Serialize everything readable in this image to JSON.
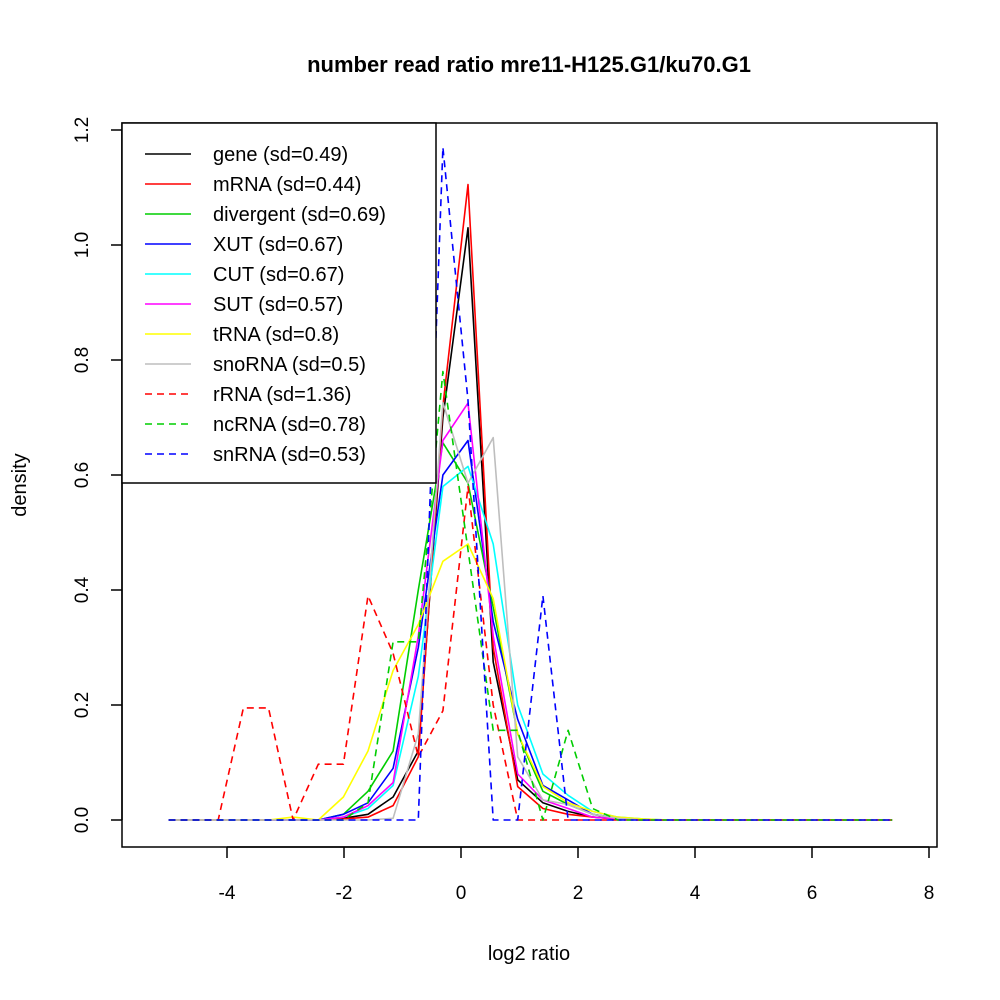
{
  "chart_data": {
    "type": "line",
    "title": "number read ratio mre11-H125.G1/ku70.G1",
    "xlabel": "log2 ratio",
    "ylabel": "density",
    "xlim": [
      -5.3,
      8.05
    ],
    "ylim": [
      -0.05,
      1.21
    ],
    "xticks": [
      -4,
      -2,
      0,
      2,
      4,
      6,
      8
    ],
    "xtick_labels": [
      "-4",
      "-2",
      "0",
      "2",
      "4",
      "6",
      "8"
    ],
    "yticks": [
      0,
      0.2,
      0.4,
      0.6,
      0.8,
      1.0,
      1.2
    ],
    "ytick_labels": [
      "0.0",
      "0.2",
      "0.4",
      "0.6",
      "0.8",
      "1.0",
      "1.2"
    ],
    "grid": false,
    "legend_position": "top-left",
    "x": [
      -5.0,
      -4.57,
      -4.15,
      -3.72,
      -3.29,
      -2.87,
      -2.44,
      -2.01,
      -1.59,
      -1.16,
      -0.73,
      -0.31,
      0.12,
      0.55,
      0.97,
      1.4,
      1.83,
      2.25,
      2.68,
      3.11,
      3.53,
      3.96,
      4.39,
      4.81,
      5.24,
      5.67,
      6.09,
      6.52,
      6.95,
      7.37
    ],
    "series": [
      {
        "name": "gene (sd=0.49)",
        "color": "#000000",
        "dashed": false,
        "values": [
          0,
          0,
          0,
          0,
          0,
          0,
          0,
          0.003,
          0.01,
          0.04,
          0.12,
          0.7,
          1.03,
          0.275,
          0.07,
          0.03,
          0.015,
          0.005,
          0.002,
          0,
          0,
          0,
          0,
          0,
          0,
          0,
          0,
          0,
          0,
          0
        ]
      },
      {
        "name": "mRNA (sd=0.44)",
        "color": "#ff0000",
        "dashed": false,
        "values": [
          0,
          0,
          0,
          0,
          0,
          0,
          0,
          0.002,
          0.005,
          0.025,
          0.11,
          0.72,
          1.105,
          0.3,
          0.058,
          0.02,
          0.01,
          0.005,
          0.002,
          0,
          0,
          0,
          0,
          0,
          0,
          0,
          0,
          0,
          0,
          0
        ]
      },
      {
        "name": "divergent (sd=0.69)",
        "color": "#00cd00",
        "dashed": false,
        "values": [
          0,
          0,
          0,
          0,
          0,
          0,
          0,
          0.01,
          0.05,
          0.12,
          0.4,
          0.656,
          0.586,
          0.37,
          0.15,
          0.05,
          0.027,
          0.01,
          0.003,
          0,
          0,
          0,
          0,
          0,
          0,
          0,
          0,
          0,
          0,
          0
        ]
      },
      {
        "name": "XUT (sd=0.67)",
        "color": "#0000ff",
        "dashed": false,
        "values": [
          0,
          0,
          0,
          0,
          0,
          0,
          0,
          0.01,
          0.03,
          0.09,
          0.3,
          0.6,
          0.66,
          0.345,
          0.175,
          0.06,
          0.035,
          0.01,
          0.003,
          0,
          0,
          0,
          0,
          0,
          0,
          0,
          0,
          0,
          0,
          0
        ]
      },
      {
        "name": "CUT (sd=0.67)",
        "color": "#00ffff",
        "dashed": false,
        "values": [
          0,
          0,
          0,
          0,
          0,
          0,
          0,
          0.005,
          0.02,
          0.06,
          0.25,
          0.58,
          0.615,
          0.48,
          0.2,
          0.08,
          0.043,
          0.015,
          0.005,
          0.002,
          0,
          0,
          0,
          0,
          0,
          0,
          0,
          0,
          0,
          0
        ]
      },
      {
        "name": "SUT (sd=0.57)",
        "color": "#ff00ff",
        "dashed": false,
        "values": [
          0,
          0,
          0,
          0,
          0,
          0,
          0,
          0.005,
          0.025,
          0.065,
          0.32,
          0.66,
          0.725,
          0.32,
          0.08,
          0.035,
          0.02,
          0.005,
          0.002,
          0,
          0,
          0,
          0,
          0,
          0,
          0,
          0,
          0,
          0,
          0
        ]
      },
      {
        "name": "tRNA (sd=0.8)",
        "color": "#ffff00",
        "dashed": false,
        "values": [
          0,
          0,
          0,
          0,
          0,
          0.005,
          0,
          0.04,
          0.12,
          0.26,
          0.34,
          0.45,
          0.48,
          0.385,
          0.15,
          0.058,
          0.03,
          0.015,
          0.005,
          0.002,
          0,
          0,
          0,
          0,
          0,
          0,
          0,
          0,
          0,
          0
        ]
      },
      {
        "name": "snoRNA (sd=0.5)",
        "color": "#bebebe",
        "dashed": false,
        "values": [
          0,
          0,
          0,
          0,
          0,
          0,
          0,
          0,
          0,
          0.003,
          0.15,
          0.726,
          0.586,
          0.665,
          0.11,
          0.035,
          0.027,
          0.01,
          0.003,
          0,
          0,
          0,
          0,
          0,
          0,
          0,
          0,
          0,
          0,
          0
        ]
      },
      {
        "name": "rRNA (sd=1.36)",
        "color": "#ff0000",
        "dashed": true,
        "values": [
          0,
          0,
          0,
          0.195,
          0.195,
          0,
          0.097,
          0.097,
          0.39,
          0.29,
          0.11,
          0.19,
          0.58,
          0.2,
          0,
          0,
          0,
          0,
          0,
          0,
          0,
          0,
          0,
          0,
          0,
          0,
          0,
          0,
          0,
          0
        ]
      },
      {
        "name": "ncRNA (sd=0.78)",
        "color": "#00cd00",
        "dashed": true,
        "values": [
          0,
          0,
          0,
          0,
          0,
          0,
          0,
          0,
          0.03,
          0.31,
          0.31,
          0.78,
          0.47,
          0.156,
          0.156,
          0,
          0.156,
          0.02,
          0,
          0,
          0,
          0,
          0,
          0,
          0,
          0,
          0,
          0,
          0,
          0
        ]
      },
      {
        "name": "snRNA (sd=0.53)",
        "color": "#0000ff",
        "dashed": true,
        "values": [
          0,
          0,
          0,
          0,
          0,
          0,
          0,
          0,
          0,
          0,
          0,
          1.17,
          0.73,
          0,
          0,
          0.39,
          0,
          0,
          0,
          0,
          0,
          0,
          0,
          0,
          0,
          0,
          0,
          0,
          0,
          0
        ]
      }
    ]
  }
}
